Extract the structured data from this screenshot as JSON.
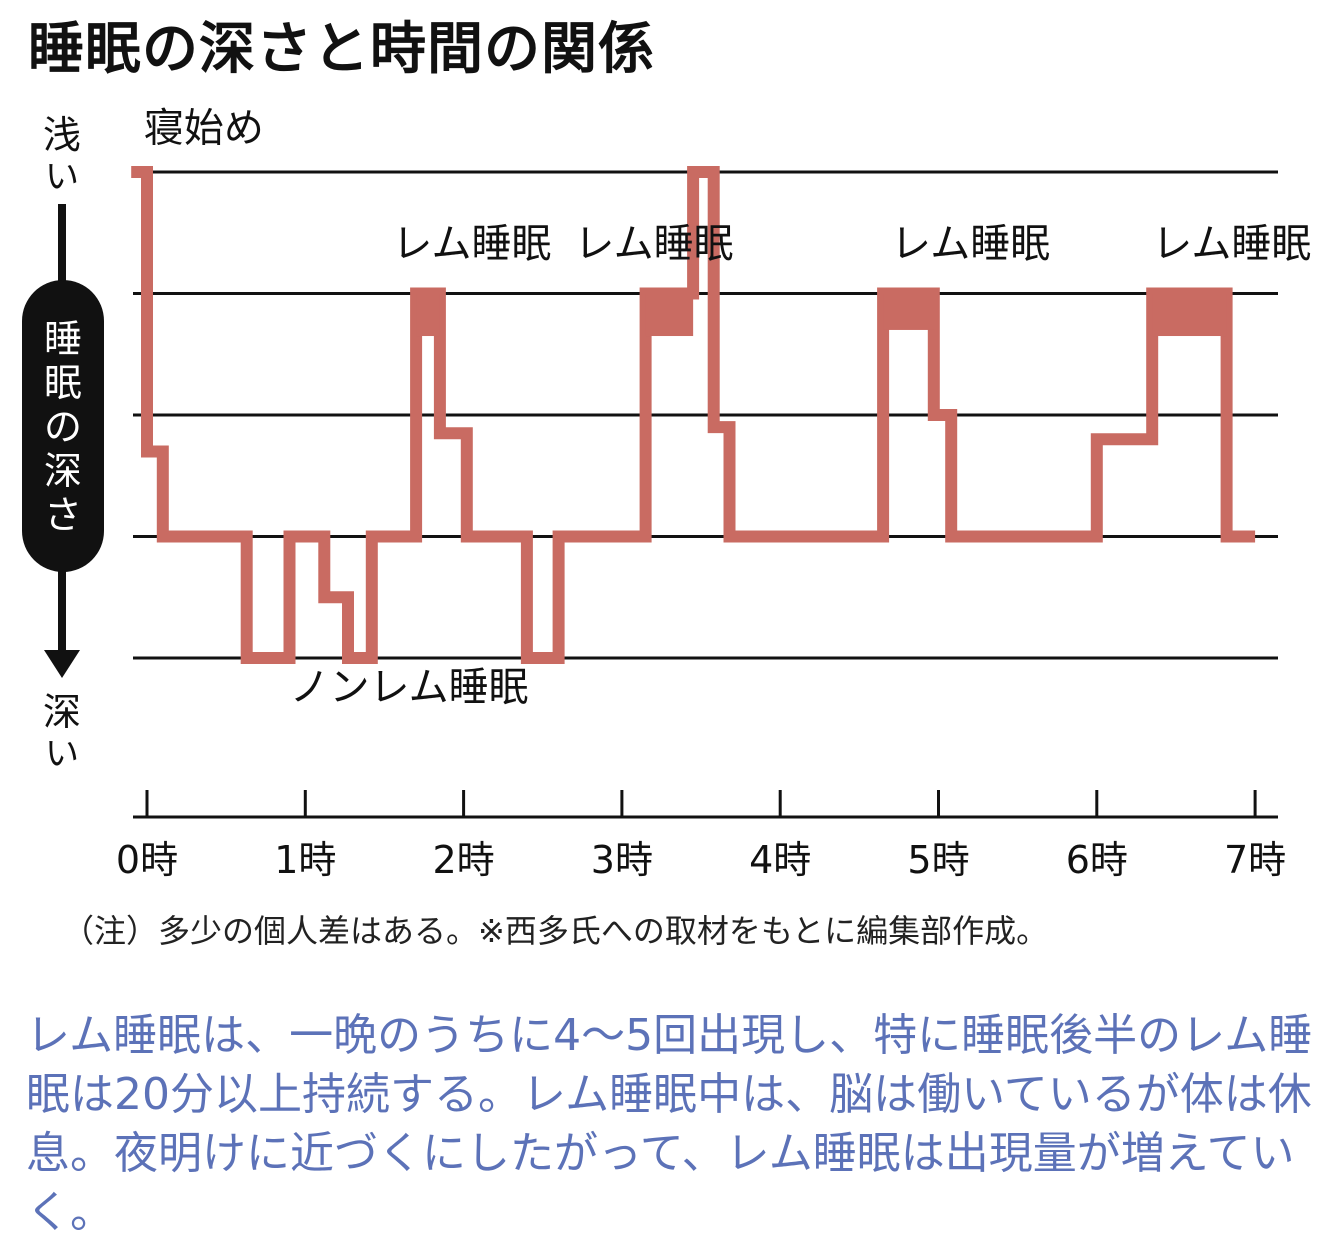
{
  "title": "睡眠の深さと時間の関係",
  "note": "（注）多少の個人差はある。※西多氏への取材をもとに編集部作成。",
  "description": "レム睡眠は、一晩のうちに4～5回出現し、特に睡眠後半のレム睡眠は20分以上持続する。レム睡眠中は、脳は働いているが体は休息。夜明けに近づくにしたがって、レム睡眠は出現量が増えていく。",
  "colors": {
    "line": "#c96b62",
    "axis": "#111111",
    "text_blue": "#5c72b8"
  },
  "chart_data": {
    "type": "line",
    "step": true,
    "title": "睡眠の深さと時間の関係",
    "ylabel": "睡眠の深さ",
    "ylabel_top": "浅い",
    "ylabel_bottom": "深い",
    "ylim": [
      0,
      4
    ],
    "xlim": [
      0,
      7
    ],
    "x_ticks": [
      {
        "value": 0,
        "label": "0時"
      },
      {
        "value": 1,
        "label": "1時"
      },
      {
        "value": 2,
        "label": "2時"
      },
      {
        "value": 3,
        "label": "3時"
      },
      {
        "value": 4,
        "label": "4時"
      },
      {
        "value": 5,
        "label": "5時"
      },
      {
        "value": 6,
        "label": "6時"
      },
      {
        "value": 7,
        "label": "7時"
      }
    ],
    "grid": true,
    "levels": [
      0,
      1,
      2,
      3,
      4
    ],
    "series": [
      {
        "points": [
          [
            -0.1,
            4.0
          ],
          [
            0.0,
            4.0
          ],
          [
            0.0,
            1.7
          ],
          [
            0.1,
            1.7
          ],
          [
            0.1,
            1.0
          ],
          [
            0.63,
            1.0
          ],
          [
            0.63,
            0.0
          ],
          [
            0.9,
            0.0
          ],
          [
            0.9,
            1.0
          ],
          [
            1.12,
            1.0
          ],
          [
            1.12,
            0.5
          ],
          [
            1.27,
            0.5
          ],
          [
            1.27,
            0.0
          ],
          [
            1.42,
            0.0
          ],
          [
            1.42,
            1.0
          ],
          [
            1.7,
            1.0
          ],
          [
            1.7,
            3.0
          ],
          [
            1.85,
            3.0
          ],
          [
            1.85,
            1.85
          ],
          [
            2.02,
            1.85
          ],
          [
            2.02,
            1.0
          ],
          [
            2.4,
            1.0
          ],
          [
            2.4,
            0.0
          ],
          [
            2.6,
            0.0
          ],
          [
            2.6,
            1.0
          ],
          [
            3.15,
            1.0
          ],
          [
            3.15,
            3.0
          ],
          [
            3.45,
            3.0
          ],
          [
            3.45,
            4.0
          ],
          [
            3.58,
            4.0
          ],
          [
            3.58,
            1.9
          ],
          [
            3.68,
            1.9
          ],
          [
            3.68,
            1.0
          ],
          [
            4.65,
            1.0
          ],
          [
            4.65,
            3.0
          ],
          [
            4.97,
            3.0
          ],
          [
            4.97,
            2.0
          ],
          [
            5.08,
            2.0
          ],
          [
            5.08,
            1.0
          ],
          [
            6.0,
            1.0
          ],
          [
            6.0,
            1.8
          ],
          [
            6.35,
            1.8
          ],
          [
            6.35,
            3.0
          ],
          [
            6.82,
            3.0
          ],
          [
            6.82,
            1.0
          ],
          [
            7.0,
            1.0
          ]
        ]
      }
    ],
    "rem_blocks": [
      {
        "x0": 1.7,
        "x1": 1.85,
        "y0": 2.65,
        "y1": 3.0
      },
      {
        "x0": 3.15,
        "x1": 3.45,
        "y0": 2.65,
        "y1": 3.0
      },
      {
        "x0": 4.65,
        "x1": 4.97,
        "y0": 2.7,
        "y1": 3.0
      },
      {
        "x0": 6.35,
        "x1": 6.82,
        "y0": 2.65,
        "y1": 3.0
      }
    ],
    "annotations": [
      {
        "text": "寝始め",
        "x": -0.02,
        "y": 4.25
      },
      {
        "text": "レム睡眠",
        "x": 1.55,
        "y": 3.3
      },
      {
        "text": "レム睡眠",
        "x": 2.7,
        "y": 3.3
      },
      {
        "text": "レム睡眠",
        "x": 4.7,
        "y": 3.3
      },
      {
        "text": "レム睡眠",
        "x": 6.35,
        "y": 3.3
      },
      {
        "text": "ノンレム睡眠",
        "x": 0.9,
        "y": -0.35
      }
    ]
  }
}
